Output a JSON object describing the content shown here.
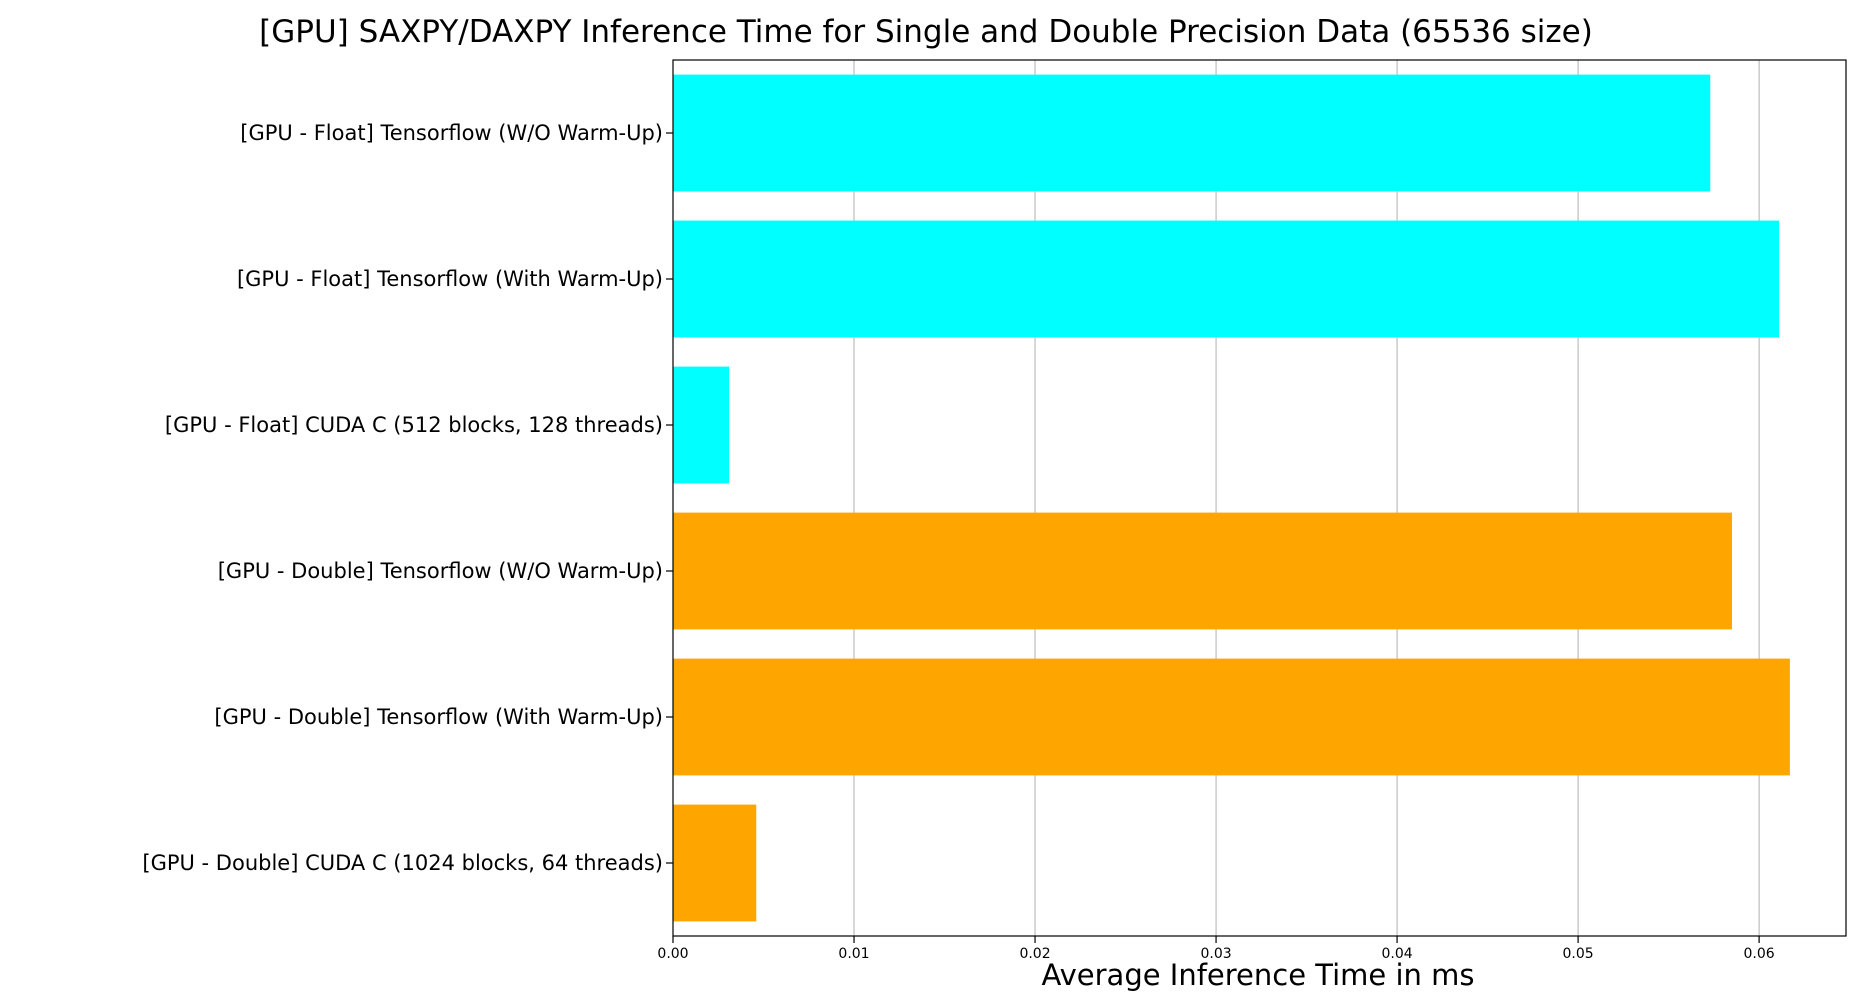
{
  "chart_data": {
    "type": "bar",
    "orientation": "horizontal",
    "title": "[GPU] SAXPY/DAXPY Inference Time for Single and Double Precision Data (65536 size)",
    "xlabel": "Average Inference Time in ms",
    "ylabel": "",
    "xlim": [
      0,
      0.0648
    ],
    "xticks": [
      0.0,
      0.01,
      0.02,
      0.03,
      0.04,
      0.05,
      0.06
    ],
    "xtick_labels": [
      "0.00",
      "0.01",
      "0.02",
      "0.03",
      "0.04",
      "0.05",
      "0.06"
    ],
    "grid": "vertical",
    "categories": [
      "[GPU - Float] Tensorflow (W/O Warm-Up)",
      "[GPU - Float] Tensorflow (With Warm-Up)",
      "[GPU - Float] CUDA C (512 blocks, 128 threads)",
      "[GPU - Double] Tensorflow (W/O Warm-Up)",
      "[GPU - Double] Tensorflow (With Warm-Up)",
      "[GPU - Double] CUDA C (1024 blocks, 64 threads)"
    ],
    "values": [
      0.0573,
      0.0611,
      0.0031,
      0.0585,
      0.0617,
      0.0046
    ],
    "colors": [
      "#00ffff",
      "#00ffff",
      "#00ffff",
      "#ffa500",
      "#ffa500",
      "#ffa500"
    ],
    "grid_color": "#b0b0b0",
    "axis_color": "#000000"
  }
}
